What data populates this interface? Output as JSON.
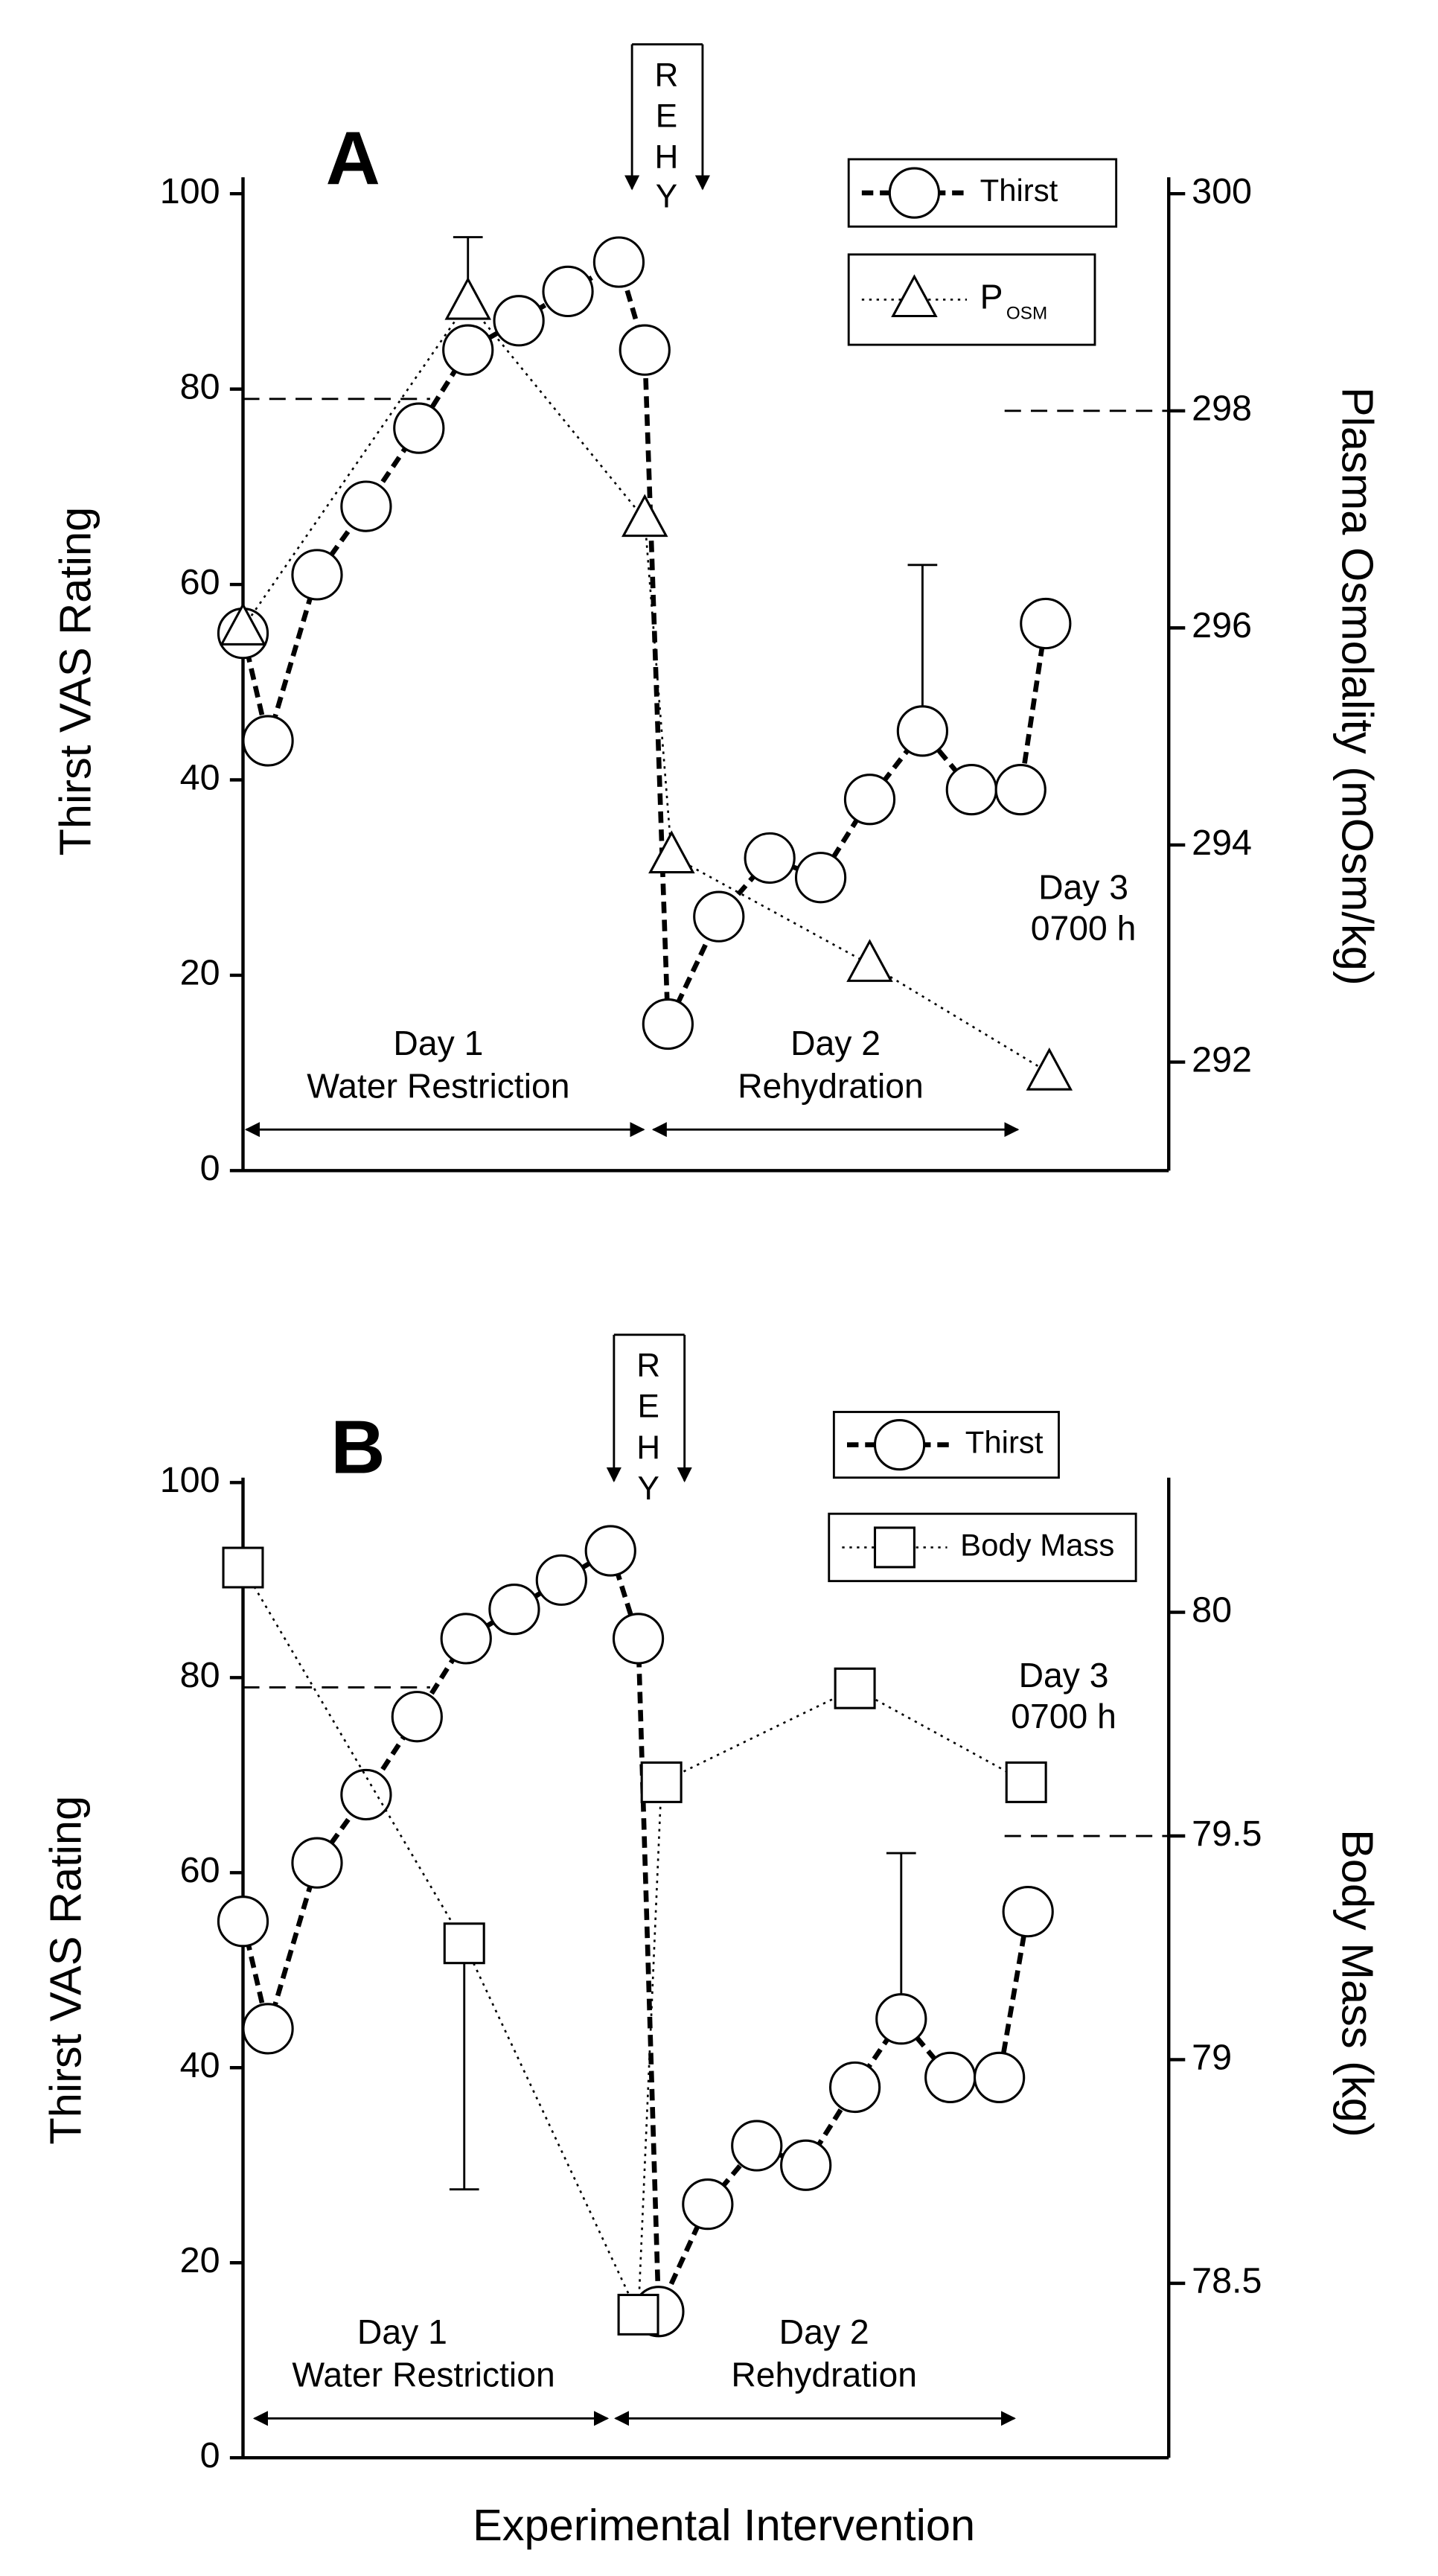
{
  "chart_data": [
    {
      "type": "line",
      "panel_label": "A",
      "ylabel": "Thirst VAS Rating",
      "y2label": "Plasma Osmolality (mOsm/kg)",
      "xlim": [
        0,
        100
      ],
      "ylim": [
        0,
        100
      ],
      "yticks": [
        0,
        20,
        40,
        60,
        80,
        100
      ],
      "y2lim": [
        291,
        300
      ],
      "y2ticks": [
        292,
        294,
        296,
        298,
        300
      ],
      "rehy": [
        "R",
        "E",
        "H",
        "Y"
      ],
      "annotations": {
        "day1": "Day 1",
        "day1_desc": "Water Restriction",
        "day2": "Day 2",
        "day2_desc": "Rehydration",
        "day3": "Day 3",
        "day3_time": "0700 h"
      },
      "reference_lines": [
        {
          "axis": "y",
          "value": 79
        },
        {
          "axis": "y2",
          "value": 298
        }
      ],
      "series": [
        {
          "name": "Thirst",
          "color": "#000000",
          "marker": "circle",
          "line_style": "dashed",
          "error_side": "up",
          "x": [
            0,
            2.7,
            8.0,
            13.3,
            19.0,
            24.3,
            29.8,
            35.1,
            40.6,
            43.4,
            45.9,
            51.4,
            56.9,
            62.4,
            67.7,
            73.4,
            78.7,
            84.0,
            86.7
          ],
          "values": [
            55,
            44,
            61,
            68,
            76,
            84,
            87,
            90,
            93,
            84,
            15,
            26,
            32,
            30,
            38,
            45,
            39,
            39,
            56
          ],
          "errors": [
            null,
            null,
            null,
            null,
            null,
            null,
            null,
            null,
            null,
            null,
            null,
            null,
            null,
            null,
            null,
            17,
            null,
            null,
            null
          ]
        },
        {
          "name": "P",
          "name_subscript": "OSM",
          "axis": "y2",
          "color": "#000000",
          "marker": "triangle",
          "line_style": "dotted",
          "error_side": "up",
          "x": [
            0,
            24.3,
            43.4,
            46.3,
            67.7,
            87.1
          ],
          "values": [
            296.0,
            299.0,
            297.0,
            293.9,
            292.9,
            291.9
          ],
          "errors": [
            null,
            0.6,
            null,
            null,
            null,
            null
          ]
        }
      ]
    },
    {
      "type": "line",
      "panel_label": "B",
      "ylabel": "Thirst VAS Rating",
      "y2label": "Body Mass (kg)",
      "xlabel": "Experimental Intervention",
      "xlim": [
        0,
        100
      ],
      "ylim": [
        0,
        100
      ],
      "yticks": [
        0,
        20,
        40,
        60,
        80,
        100
      ],
      "y2lim": [
        78.11,
        80.29
      ],
      "y2ticks": [
        78.5,
        79,
        79.5,
        80
      ],
      "rehy": [
        "R",
        "E",
        "H",
        "Y"
      ],
      "annotations": {
        "day1": "Day 1",
        "day1_desc": "Water Restriction",
        "day2": "Day 2",
        "day2_desc": "Rehydration",
        "day3": "Day 3",
        "day3_time": "0700 h"
      },
      "reference_lines": [
        {
          "axis": "y",
          "value": 79
        },
        {
          "axis": "y2",
          "value": 79.5
        }
      ],
      "series": [
        {
          "name": "Thirst",
          "color": "#000000",
          "marker": "circle",
          "line_style": "dashed",
          "error_side": "up",
          "x": [
            0,
            2.7,
            8.0,
            13.3,
            18.8,
            24.1,
            29.3,
            34.4,
            39.7,
            42.7,
            44.9,
            50.2,
            55.5,
            60.8,
            66.1,
            71.1,
            76.4,
            81.7,
            84.8
          ],
          "values": [
            55,
            44,
            61,
            68,
            76,
            84,
            87,
            90,
            93,
            84,
            15,
            26,
            32,
            30,
            38,
            45,
            39,
            39,
            56
          ],
          "errors": [
            null,
            null,
            null,
            null,
            null,
            null,
            null,
            null,
            null,
            null,
            null,
            null,
            null,
            null,
            null,
            17,
            null,
            null,
            null
          ]
        },
        {
          "name": "Body Mass",
          "axis": "y2",
          "color": "#000000",
          "marker": "square",
          "line_style": "dotted",
          "error_side": "down",
          "x": [
            0,
            23.9,
            42.7,
            45.2,
            66.1,
            84.6
          ],
          "values": [
            80.1,
            79.26,
            78.43,
            79.62,
            79.83,
            79.62
          ],
          "errors": [
            null,
            0.55,
            null,
            null,
            null,
            null
          ]
        }
      ]
    }
  ]
}
